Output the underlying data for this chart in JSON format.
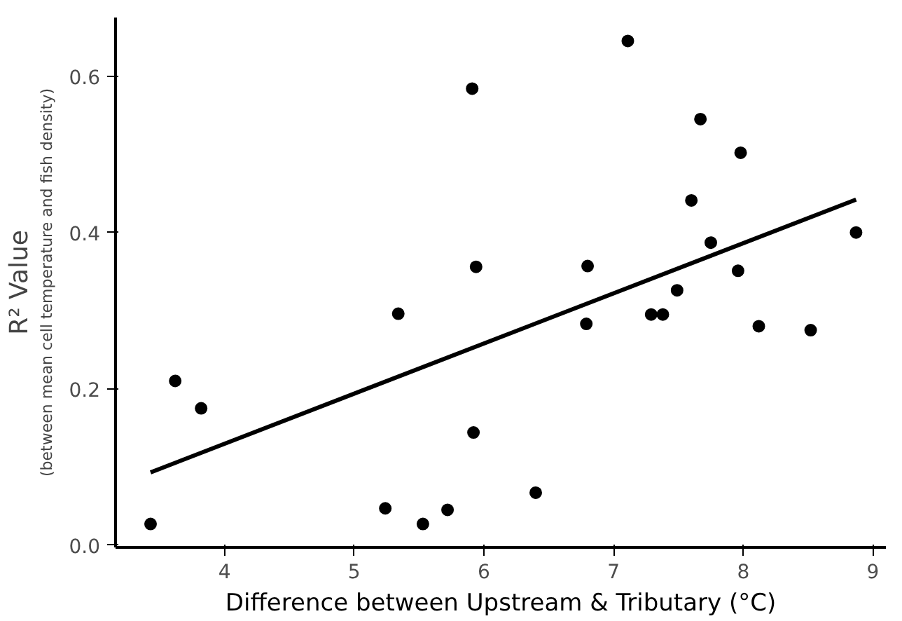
{
  "chart_data": {
    "type": "scatter",
    "xlabel": "Difference between Upstream & Tributary (°C)",
    "ylabel": "R² Value",
    "annotations": [
      "(between mean cell temperature and fish density)"
    ],
    "xlim": [
      3.16,
      9.1
    ],
    "xticks": [
      4,
      5,
      6,
      7,
      8,
      9
    ],
    "ylim": [
      -0.003,
      0.675
    ],
    "yticks": [
      {
        "value": 0,
        "label": "0.0"
      },
      0.2,
      0.4,
      0.6
    ],
    "grid": false,
    "series": [
      {
        "color": "#000000",
        "marker": "circle",
        "x": [
          3.43,
          3.62,
          3.82,
          5.24,
          5.34,
          5.53,
          5.72,
          5.91,
          5.92,
          5.94,
          6.4,
          6.79,
          6.8,
          7.11,
          7.29,
          7.38,
          7.49,
          7.6,
          7.67,
          7.75,
          7.96,
          7.98,
          8.12,
          8.52,
          8.87
        ],
        "values": [
          0.027,
          0.21,
          0.175,
          0.047,
          0.296,
          0.027,
          0.045,
          0.584,
          0.144,
          0.356,
          0.067,
          0.283,
          0.357,
          0.645,
          0.295,
          0.295,
          0.326,
          0.441,
          0.545,
          0.387,
          0.351,
          0.502,
          0.28,
          0.275,
          0.4
        ]
      },
      {
        "type": "line",
        "color": "#000000",
        "line_style": "solid",
        "marker": "none",
        "x": [
          3.43,
          8.87
        ],
        "values": [
          0.093,
          0.442
        ]
      }
    ]
  }
}
